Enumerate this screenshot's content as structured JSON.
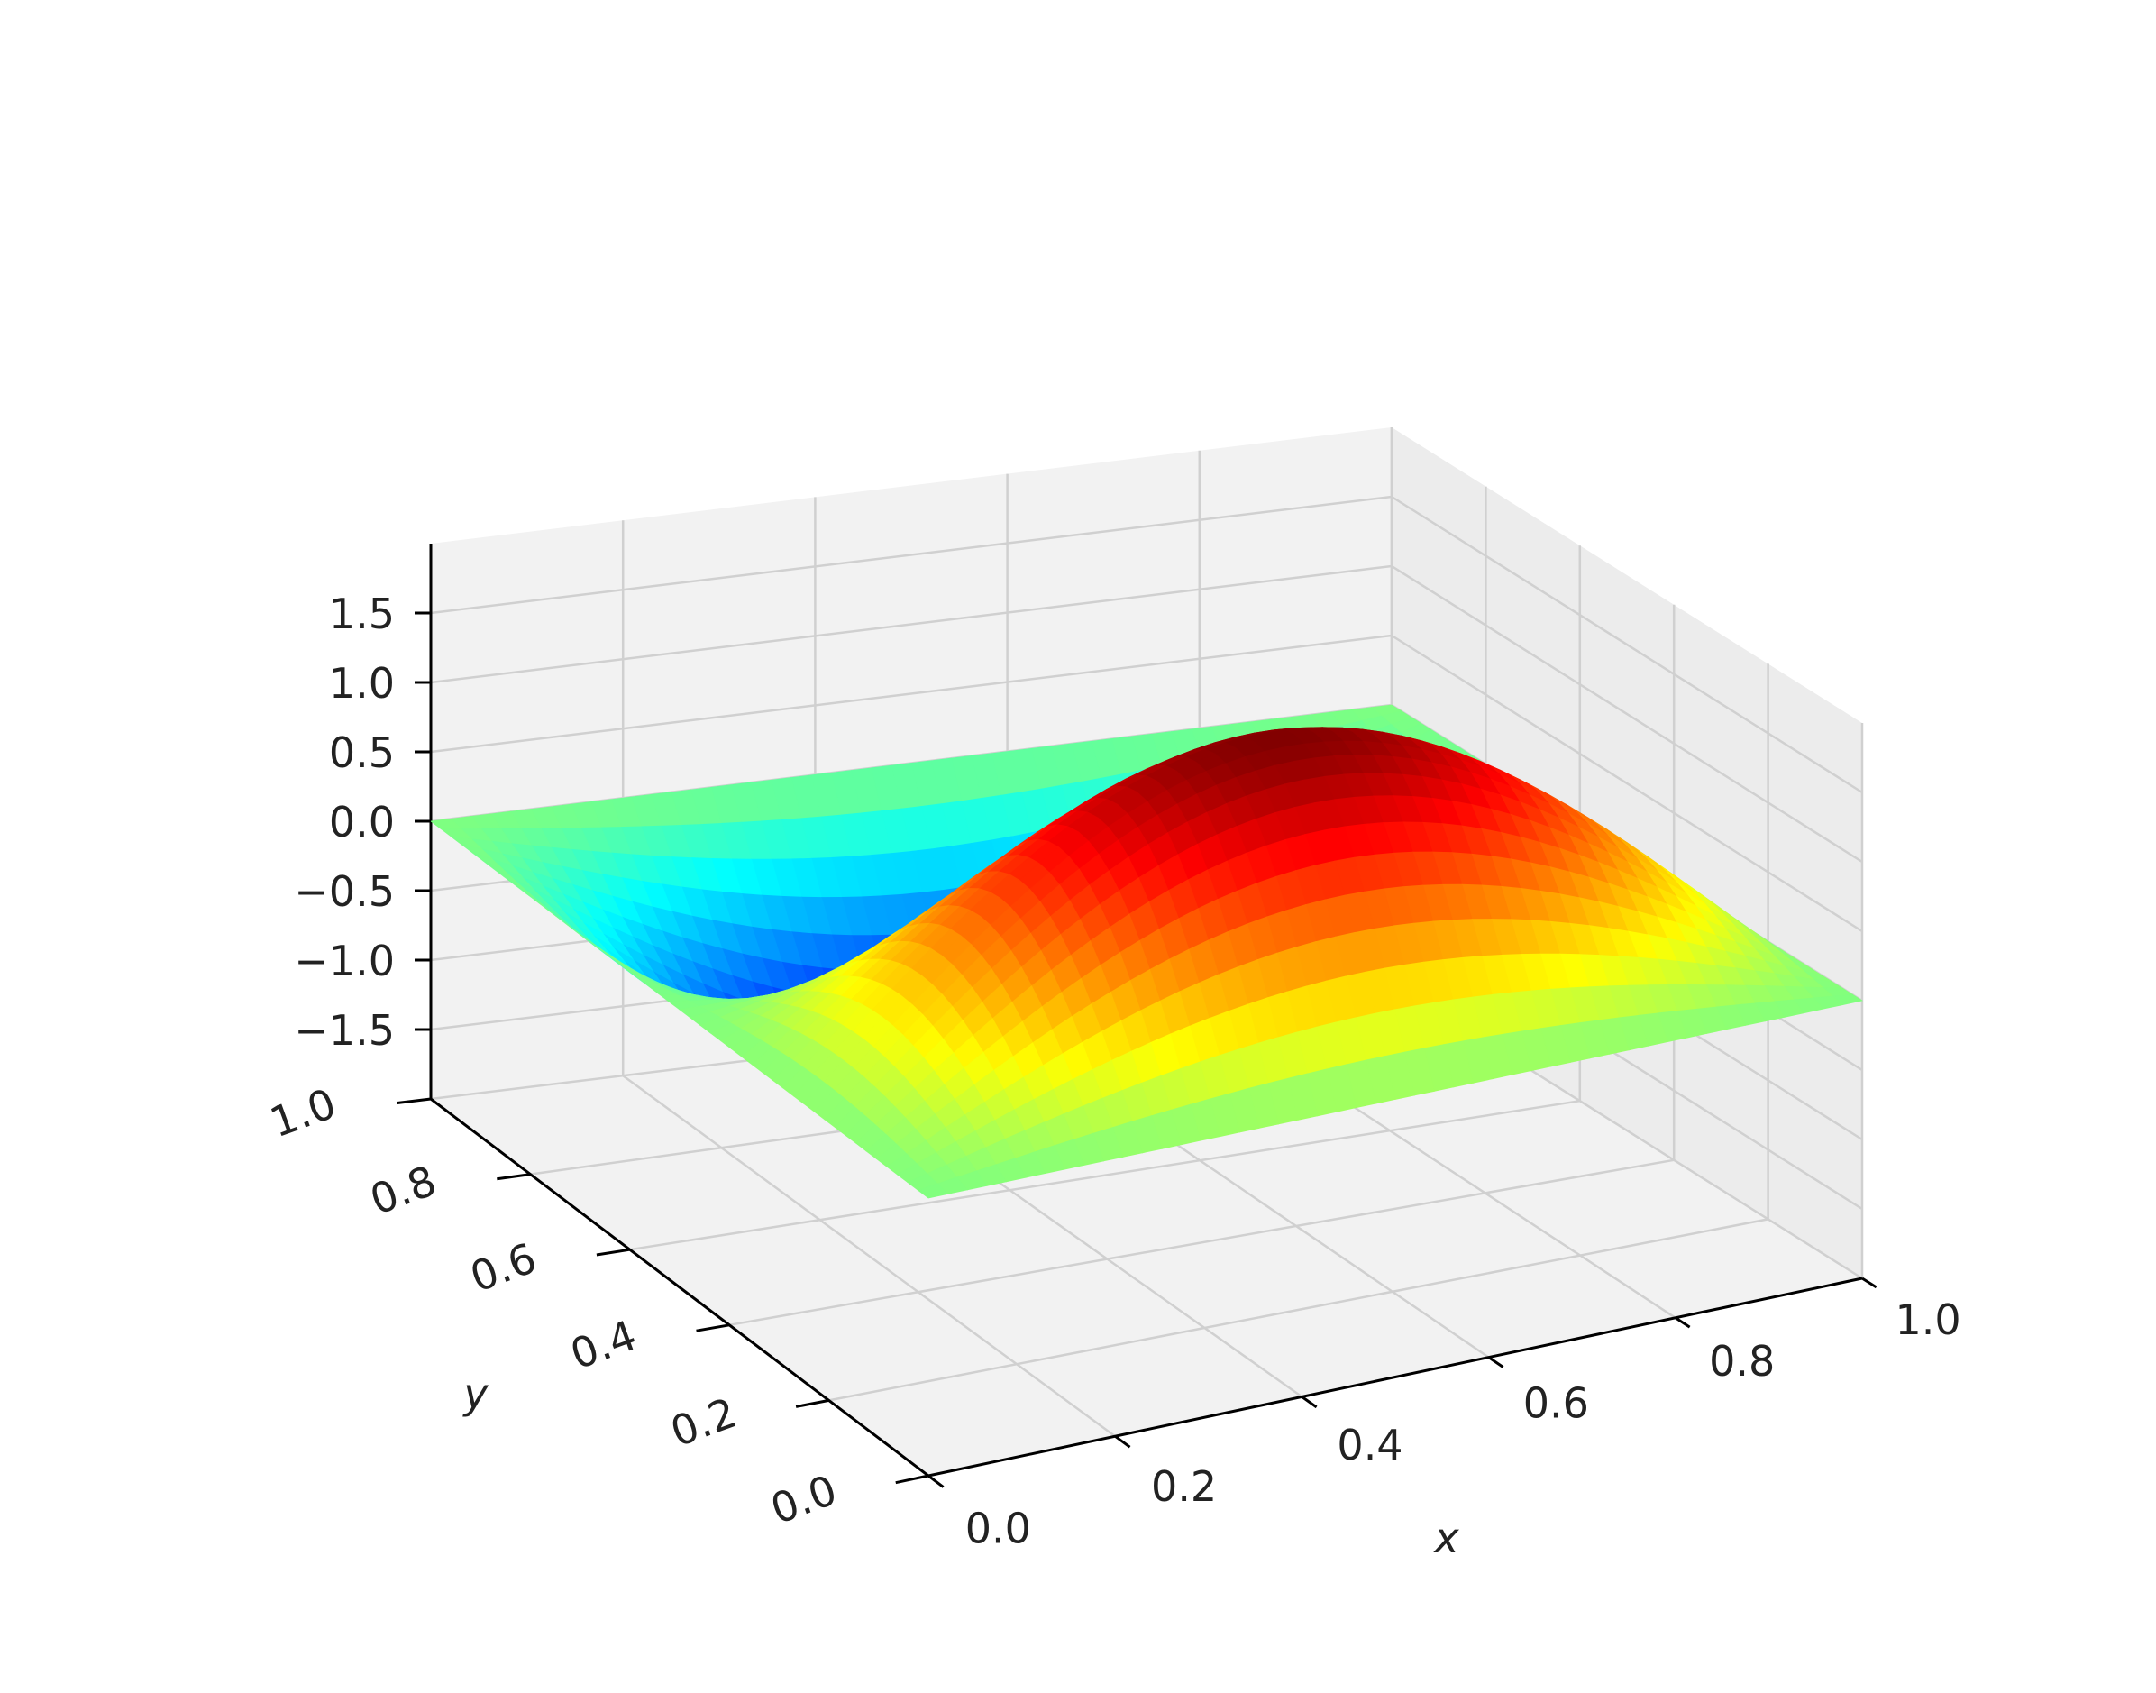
{
  "chart_data": {
    "type": "surface3d",
    "title": "",
    "xlabel": "x",
    "ylabel": "y",
    "zlabel": "",
    "xlim": [
      0,
      1
    ],
    "ylim": [
      0,
      1
    ],
    "zlim": [
      -2,
      2
    ],
    "x_ticks": [
      "0.0",
      "0.2",
      "0.4",
      "0.6",
      "0.8",
      "1.0"
    ],
    "y_ticks": [
      "0.0",
      "0.2",
      "0.4",
      "0.6",
      "0.8",
      "1.0"
    ],
    "z_ticks": [
      "−1.5",
      "−1.0",
      "−0.5",
      "0.0",
      "0.5",
      "1.0",
      "1.5"
    ],
    "z_tick_values": [
      -1.5,
      -1.0,
      -0.5,
      0.0,
      0.5,
      1.0,
      1.5
    ],
    "surface": "z = 2*sin(pi*x)*sin(2*pi*y)",
    "sample_points": [
      {
        "x": 0.5,
        "y": 0.25,
        "z": 2.0
      },
      {
        "x": 0.5,
        "y": 0.75,
        "z": -2.0
      },
      {
        "x": 0.0,
        "y": 0.5,
        "z": 0.0
      },
      {
        "x": 1.0,
        "y": 0.5,
        "z": 0.0
      }
    ],
    "colormap": "jet",
    "grid": true,
    "panes_color": "#f2f2f2",
    "grid_color": "#d0d0d0"
  }
}
